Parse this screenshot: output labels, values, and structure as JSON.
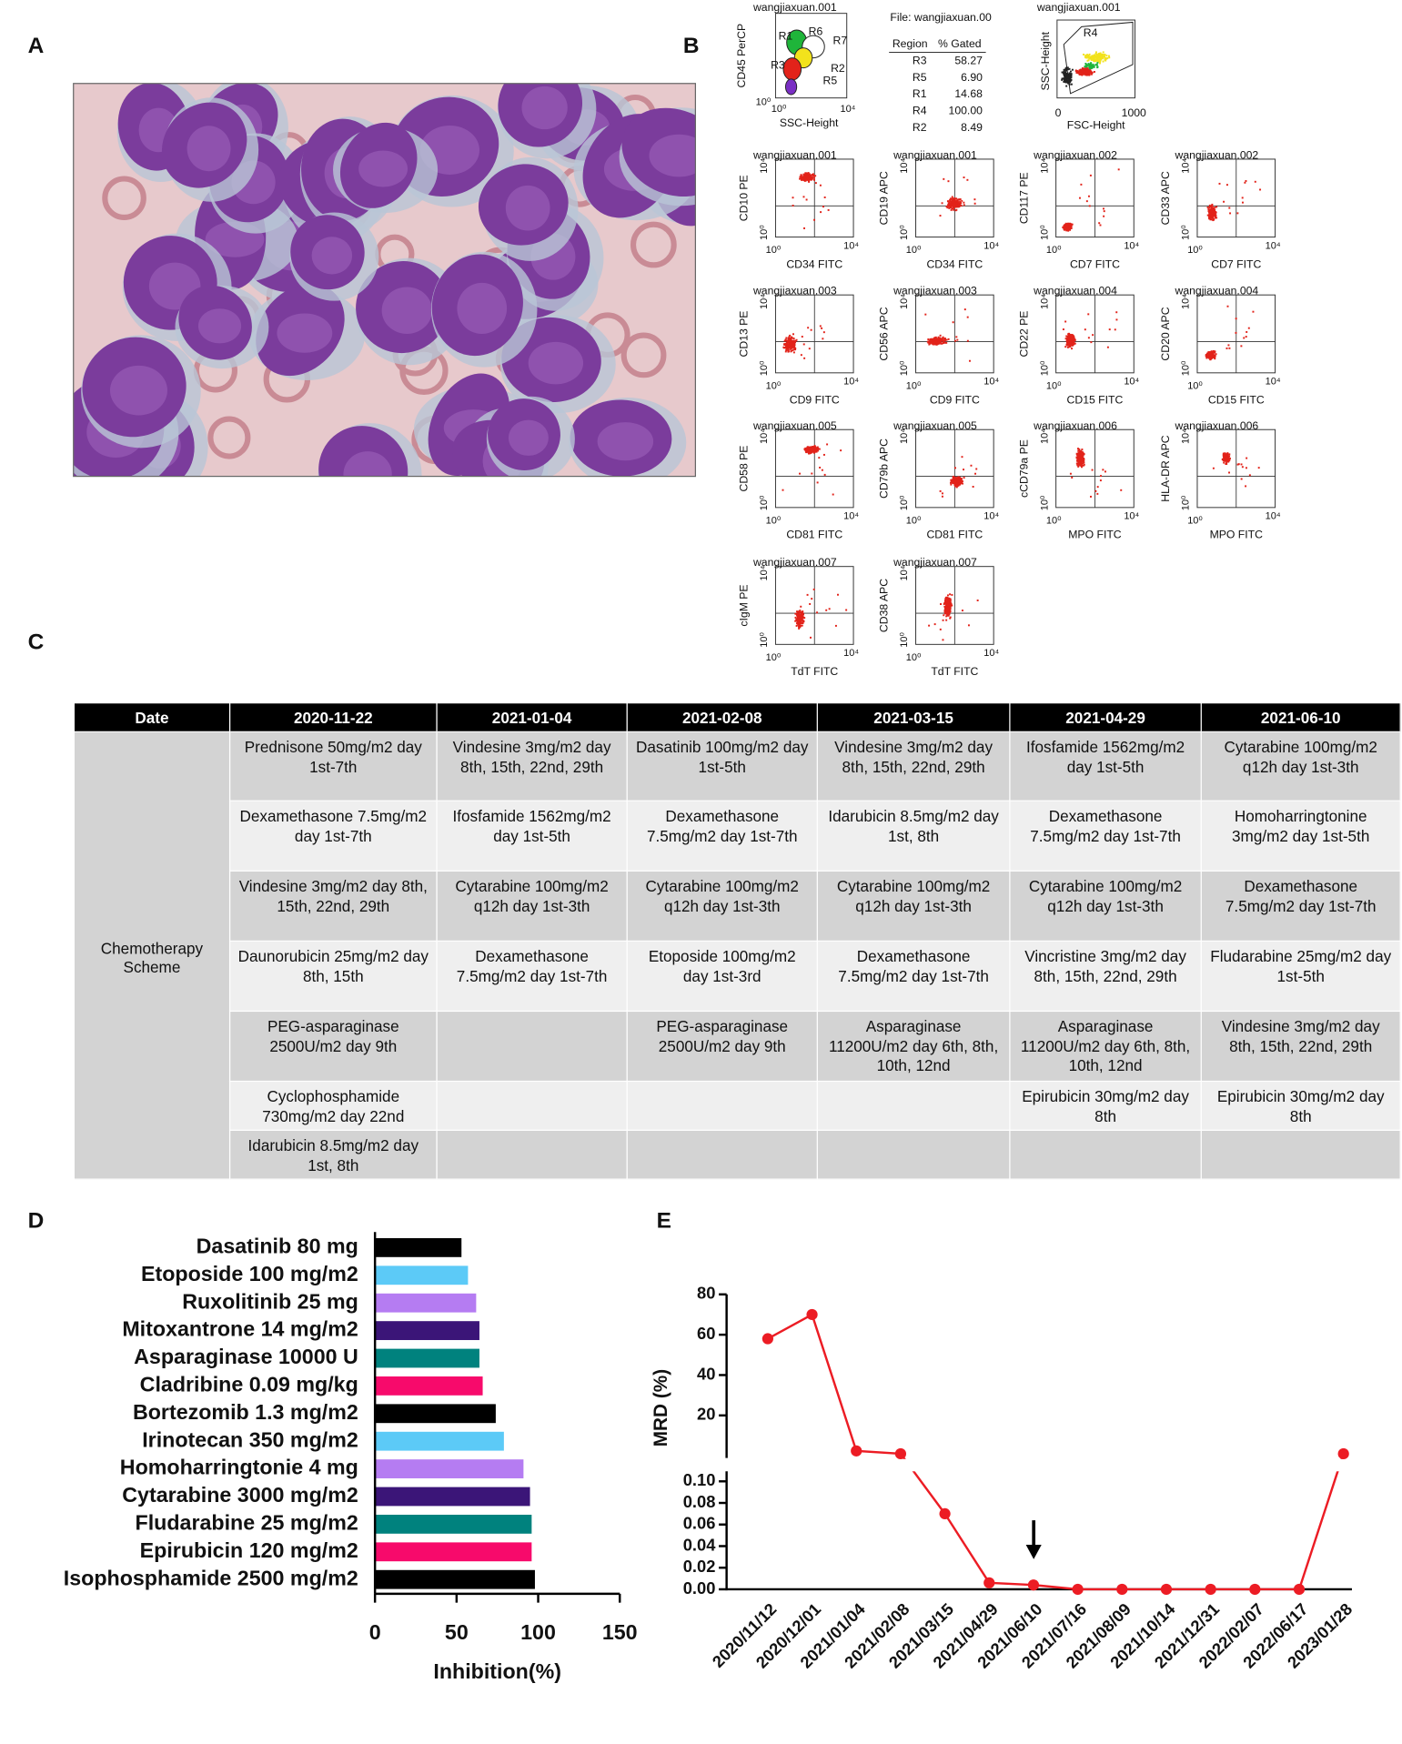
{
  "panel_labels": [
    "A",
    "B",
    "C",
    "D",
    "E"
  ],
  "flow": {
    "log_ticks": [
      "10⁰",
      "10⁴"
    ],
    "gate_plot": {
      "title": "wangjiaxuan.001",
      "y_label": "CD45 PerCP",
      "x_label": "SSC-Height",
      "regions": [
        "R1",
        "R6",
        "R7",
        "R3",
        "R2",
        "R5"
      ]
    },
    "gate_table": {
      "file": "File: wangjiaxuan.00",
      "columns": [
        "Region",
        "% Gated"
      ],
      "rows": [
        [
          "R3",
          "58.27"
        ],
        [
          "R5",
          "6.90"
        ],
        [
          "R1",
          "14.68"
        ],
        [
          "R4",
          "100.00"
        ],
        [
          "R2",
          "8.49"
        ]
      ]
    },
    "scatter_plot": {
      "title": "wangjiaxuan.001",
      "y_label": "SSC-Height",
      "x_label": "FSC-Height",
      "region": "R4",
      "ticks": [
        "0",
        "1000"
      ]
    },
    "plots": [
      {
        "title": "wangjiaxuan.001",
        "y_label": "CD10 PE",
        "x_label": "CD34 FITC"
      },
      {
        "title": "wangjiaxuan.001",
        "y_label": "CD19 APC",
        "x_label": "CD34 FITC"
      },
      {
        "title": "wangjiaxuan.002",
        "y_label": "CD117 PE",
        "x_label": "CD7 FITC"
      },
      {
        "title": "wangjiaxuan.002",
        "y_label": "CD33 APC",
        "x_label": "CD7 FITC"
      },
      {
        "title": "wangjiaxuan.003",
        "y_label": "CD13 PE",
        "x_label": "CD9 FITC"
      },
      {
        "title": "wangjiaxuan.003",
        "y_label": "CD56 APC",
        "x_label": "CD9 FITC"
      },
      {
        "title": "wangjiaxuan.004",
        "y_label": "CD22 PE",
        "x_label": "CD15 FITC"
      },
      {
        "title": "wangjiaxuan.004",
        "y_label": "CD20 APC",
        "x_label": "CD15 FITC"
      },
      {
        "title": "wangjiaxuan.005",
        "y_label": "CD58 PE",
        "x_label": "CD81 FITC"
      },
      {
        "title": "wangjiaxuan.005",
        "y_label": "CD79b APC",
        "x_label": "CD81 FITC"
      },
      {
        "title": "wangjiaxuan.006",
        "y_label": "cCD79a PE",
        "x_label": "MPO FITC"
      },
      {
        "title": "wangjiaxuan.006",
        "y_label": "HLA-DR APC",
        "x_label": "MPO FITC"
      },
      {
        "title": "wangjiaxuan.007",
        "y_label": "cIgM PE",
        "x_label": "TdT FITC"
      },
      {
        "title": "wangjiaxuan.007",
        "y_label": "CD38 APC",
        "x_label": "TdT FITC"
      }
    ]
  },
  "table": {
    "header": [
      "Date",
      "2020-11-22",
      "2021-01-04",
      "2021-02-08",
      "2021-03-15",
      "2021-04-29",
      "2021-06-10"
    ],
    "row_label": "Chemotherapy Scheme",
    "rows": [
      [
        "Prednisone 50mg/m2 day 1st-7th",
        "Vindesine 3mg/m2 day 8th, 15th, 22nd, 29th",
        "Dasatinib 100mg/m2 day 1st-5th",
        "Vindesine 3mg/m2 day 8th, 15th, 22nd, 29th",
        "Ifosfamide 1562mg/m2 day 1st-5th",
        "Cytarabine 100mg/m2 q12h day 1st-3th"
      ],
      [
        "Dexamethasone 7.5mg/m2 day 1st-7th",
        "Ifosfamide 1562mg/m2 day 1st-5th",
        "Dexamethasone 7.5mg/m2 day 1st-7th",
        "Idarubicin 8.5mg/m2 day 1st, 8th",
        "Dexamethasone 7.5mg/m2 day 1st-7th",
        "Homoharringtonine 3mg/m2 day 1st-5th"
      ],
      [
        "Vindesine 3mg/m2 day 8th, 15th, 22nd, 29th",
        "Cytarabine 100mg/m2 q12h day 1st-3th",
        "Cytarabine 100mg/m2 q12h day 1st-3th",
        "Cytarabine 100mg/m2 q12h day 1st-3th",
        "Cytarabine 100mg/m2 q12h day 1st-3th",
        "Dexamethasone 7.5mg/m2 day 1st-7th"
      ],
      [
        "Daunorubicin 25mg/m2 day 8th, 15th",
        "Dexamethasone 7.5mg/m2 day 1st-7th",
        "Etoposide 100mg/m2 day 1st-3rd",
        "Dexamethasone 7.5mg/m2 day 1st-7th",
        "Vincristine 3mg/m2 day 8th, 15th, 22nd, 29th",
        "Fludarabine 25mg/m2 day 1st-5th"
      ],
      [
        "PEG-asparaginase 2500U/m2 day 9th",
        null,
        "PEG-asparaginase 2500U/m2 day 9th",
        "Asparaginase 11200U/m2 day 6th, 8th, 10th, 12nd",
        "Asparaginase 11200U/m2 day 6th, 8th, 10th, 12nd",
        "Vindesine 3mg/m2 day 8th, 15th, 22nd, 29th"
      ],
      [
        "Cyclophosphamide 730mg/m2 day 22nd",
        null,
        null,
        null,
        "Epirubicin 30mg/m2 day 8th",
        "Epirubicin 30mg/m2 day 8th"
      ],
      [
        "Idarubicin 8.5mg/m2 day 1st, 8th",
        null,
        null,
        null,
        null,
        null
      ]
    ]
  },
  "chart_data": [
    {
      "type": "bar",
      "orientation": "horizontal",
      "x_label": "Inhibition(%)",
      "categories": [
        "Dasatinib 80 mg",
        "Etoposide 100 mg/m2",
        "Ruxolitinib 25 mg",
        "Mitoxantrone 14 mg/m2",
        "Asparaginase 10000 U",
        "Cladribine 0.09 mg/kg",
        "Bortezomib 1.3 mg/m2",
        "Irinotecan 350 mg/m2",
        "Homoharringtonie 4 mg",
        "Cytarabine 3000 mg/m2",
        "Fludarabine 25 mg/m2",
        "Epirubicin 120 mg/m2",
        "Isophosphamide 2500 mg/m2"
      ],
      "values": [
        53,
        57,
        62,
        64,
        64,
        66,
        74,
        79,
        91,
        95,
        96,
        96,
        98
      ],
      "colors": [
        "#000000",
        "#5ccaf7",
        "#b57cf2",
        "#3b1578",
        "#00827e",
        "#f70a6b",
        "#000000",
        "#5ccaf7",
        "#b57cf2",
        "#3b1578",
        "#00827e",
        "#f70a6b",
        "#000000"
      ],
      "xlim": [
        0,
        150
      ],
      "xticks": [
        0,
        50,
        100,
        150
      ]
    },
    {
      "type": "line",
      "y_label": "MRD (%)",
      "color": "#ec1c24",
      "axis_break": true,
      "categories": [
        "2020/11/12",
        "2020/12/01",
        "2021/01/04",
        "2021/02/08",
        "2021/03/15",
        "2021/04/29",
        "2021/06/10",
        "2021/07/16",
        "2021/08/09",
        "2021/10/14",
        "2021/12/31",
        "2022/02/07",
        "2022/06/17",
        "2023/01/28"
      ],
      "values": [
        58,
        70,
        2.4,
        1,
        0.07,
        0.006,
        0.004,
        0,
        0,
        0,
        0,
        0,
        0,
        1
      ],
      "ylim": [
        0,
        0.1
      ],
      "yticks": [
        {
          "value": 0,
          "label": "0.00"
        },
        0.02,
        0.04,
        0.06,
        0.08,
        {
          "value": 0.1,
          "label": "0.10"
        }
      ],
      "ylim_upper": [
        0,
        80
      ],
      "yticks_upper": [
        20,
        40,
        60,
        80
      ]
    }
  ]
}
